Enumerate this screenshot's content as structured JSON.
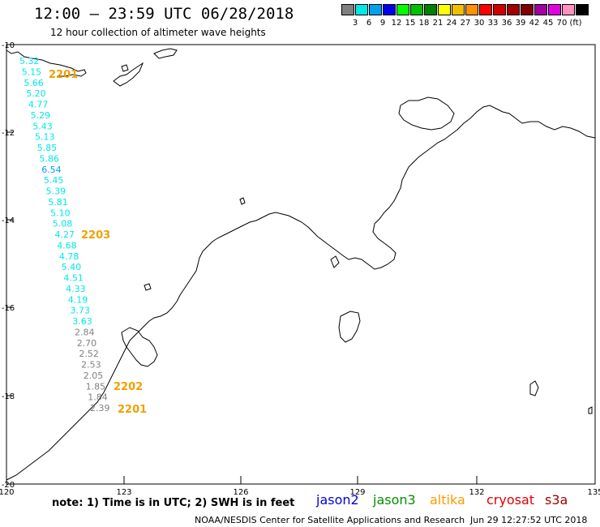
{
  "header": {
    "title": "12:00 – 23:59 UTC 06/28/2018",
    "subtitle": "12 hour collection of altimeter wave heights"
  },
  "colorbar": {
    "colors": [
      "#808080",
      "#00e8e8",
      "#00a0f0",
      "#0000f0",
      "#00ff00",
      "#00c000",
      "#008000",
      "#ffff00",
      "#f0c000",
      "#ff9000",
      "#ff0000",
      "#d00000",
      "#a00000",
      "#800000",
      "#a000a0",
      "#e000e0",
      "#ff90c0",
      "#000000"
    ],
    "labels": [
      "3",
      "6",
      "9",
      "12",
      "15",
      "18",
      "21",
      "24",
      "27",
      "30",
      "33",
      "36",
      "39",
      "42",
      "45",
      "70",
      "(ft)"
    ]
  },
  "axes": {
    "x_ticks": [
      "120",
      "123",
      "126",
      "129",
      "132",
      "135"
    ],
    "y_ticks": [
      "-10",
      "-12",
      "-14",
      "-16",
      "-18",
      "-20"
    ]
  },
  "wave_heights": [
    {
      "value": "5.32",
      "color": "#00e8e8"
    },
    {
      "value": "5.15",
      "color": "#00e8e8"
    },
    {
      "value": "5.66",
      "color": "#00e8e8"
    },
    {
      "value": "5.20",
      "color": "#00e8e8"
    },
    {
      "value": "4.77",
      "color": "#00e8e8"
    },
    {
      "value": "5.29",
      "color": "#00e8e8"
    },
    {
      "value": "5.43",
      "color": "#00e8e8"
    },
    {
      "value": "5.13",
      "color": "#00e8e8"
    },
    {
      "value": "5.85",
      "color": "#00e8e8"
    },
    {
      "value": "5.86",
      "color": "#00e8e8"
    },
    {
      "value": "6.54",
      "color": "#00a0f0"
    },
    {
      "value": "5.45",
      "color": "#00e8e8"
    },
    {
      "value": "5.39",
      "color": "#00e8e8"
    },
    {
      "value": "5.81",
      "color": "#00e8e8"
    },
    {
      "value": "5.10",
      "color": "#00e8e8"
    },
    {
      "value": "5.08",
      "color": "#00e8e8"
    },
    {
      "value": "4.27",
      "color": "#00e8e8"
    },
    {
      "value": "4.68",
      "color": "#00e8e8"
    },
    {
      "value": "4.78",
      "color": "#00e8e8"
    },
    {
      "value": "5.40",
      "color": "#00e8e8"
    },
    {
      "value": "4.51",
      "color": "#00e8e8"
    },
    {
      "value": "4.33",
      "color": "#00e8e8"
    },
    {
      "value": "4.19",
      "color": "#00e8e8"
    },
    {
      "value": "3.73",
      "color": "#00e8e8"
    },
    {
      "value": "3.63",
      "color": "#00e8e8"
    },
    {
      "value": "2.84",
      "color": "#808080"
    },
    {
      "value": "2.70",
      "color": "#808080"
    },
    {
      "value": "2.52",
      "color": "#808080"
    },
    {
      "value": "2.53",
      "color": "#808080"
    },
    {
      "value": "2.05",
      "color": "#808080"
    },
    {
      "value": "1.85",
      "color": "#808080"
    },
    {
      "value": "1.84",
      "color": "#808080"
    },
    {
      "value": "2.39",
      "color": "#808080"
    }
  ],
  "pass_times": [
    "2201",
    "2203",
    "2202",
    "2201"
  ],
  "footer": {
    "note": "note: 1) Time is in UTC; 2) SWH is in feet",
    "satellites": [
      {
        "name": "jason2",
        "color": "#0000e0"
      },
      {
        "name": "jason3",
        "color": "#009000"
      },
      {
        "name": "altika",
        "color": "#ff9a00"
      },
      {
        "name": "cryosat",
        "color": "#e00000"
      },
      {
        "name": "s3a",
        "color": "#a00000"
      }
    ],
    "credit": "NOAA/NESDIS Center for Satellite Applications and Research",
    "timestamp": "Jun 29 12:27:52 UTC 2018"
  }
}
